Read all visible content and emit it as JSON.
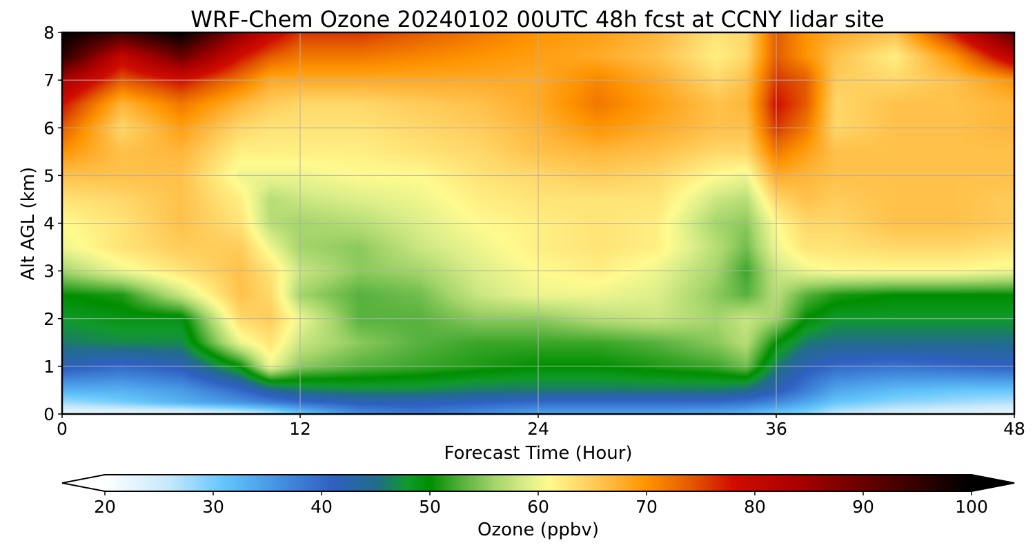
{
  "chart_data": {
    "type": "heatmap",
    "title": "WRF-Chem Ozone  20240102 00UTC 48h fcst at CCNY lidar site",
    "xlabel": "Forecast Time (Hour)",
    "ylabel": "Alt AGL (km)",
    "xlim": [
      0,
      48
    ],
    "ylim": [
      0,
      8
    ],
    "xticks": [
      0,
      12,
      24,
      36,
      48
    ],
    "yticks": [
      0,
      1,
      2,
      3,
      4,
      5,
      6,
      7,
      8
    ],
    "grid": true,
    "z_units": "ppbv",
    "x": [
      0,
      3,
      6,
      9,
      10.5,
      12,
      15,
      18,
      21,
      24,
      27,
      30,
      33,
      34.5,
      36,
      37.5,
      39,
      42,
      45,
      48
    ],
    "y": [
      0,
      0.25,
      0.5,
      1,
      1.5,
      2,
      2.5,
      3,
      3.5,
      4,
      4.5,
      5,
      5.5,
      6,
      6.5,
      7,
      7.5,
      8
    ],
    "z": [
      [
        22,
        22,
        22,
        24,
        26,
        30,
        36,
        38,
        36,
        34,
        34,
        34,
        33,
        32,
        30,
        29,
        26,
        24,
        23,
        22
      ],
      [
        28,
        30,
        33,
        36,
        38,
        40,
        42,
        42,
        41,
        40,
        40,
        40,
        40,
        39,
        37,
        34,
        31,
        29,
        28,
        27
      ],
      [
        33,
        33,
        35,
        40,
        44,
        46,
        47,
        47,
        46,
        46,
        46,
        46,
        46,
        45,
        42,
        38,
        34,
        32,
        31,
        31
      ],
      [
        42,
        40,
        42,
        50,
        60,
        55,
        53,
        52,
        51,
        50,
        50,
        51,
        52,
        54,
        46,
        42,
        40,
        39,
        40,
        41
      ],
      [
        46,
        47,
        47,
        60,
        63,
        58,
        55,
        53,
        52,
        52,
        52,
        53,
        55,
        57,
        50,
        46,
        45,
        45,
        45,
        45
      ],
      [
        48,
        49,
        49,
        64,
        65,
        60,
        53,
        53,
        55,
        55,
        57,
        58,
        56,
        58,
        56,
        50,
        48,
        48,
        48,
        48
      ],
      [
        50,
        51,
        58,
        66,
        64,
        56,
        53,
        54,
        58,
        60,
        60,
        59,
        55,
        53,
        57,
        53,
        51,
        50,
        50,
        50
      ],
      [
        56,
        60,
        63,
        66,
        63,
        58,
        55,
        56,
        59,
        61,
        62,
        60,
        56,
        52,
        58,
        60,
        61,
        61,
        61,
        60
      ],
      [
        60,
        63,
        65,
        65,
        60,
        56,
        55,
        58,
        60,
        62,
        63,
        62,
        57,
        54,
        60,
        63,
        63,
        64,
        64,
        63
      ],
      [
        61,
        63,
        66,
        63,
        57,
        56,
        57,
        59,
        61,
        62,
        63,
        62,
        56,
        55,
        61,
        64,
        64,
        66,
        66,
        65
      ],
      [
        63,
        64,
        66,
        62,
        57,
        58,
        59,
        60,
        62,
        63,
        63,
        63,
        58,
        57,
        64,
        66,
        65,
        66,
        66,
        65
      ],
      [
        66,
        66,
        66,
        60,
        60,
        60,
        61,
        61,
        63,
        64,
        65,
        64,
        61,
        60,
        68,
        67,
        66,
        66,
        66,
        66
      ],
      [
        70,
        66,
        67,
        62,
        62,
        62,
        62,
        63,
        64,
        66,
        67,
        66,
        64,
        64,
        72,
        69,
        66,
        66,
        66,
        66
      ],
      [
        74,
        64,
        69,
        64,
        63,
        63,
        63,
        64,
        65,
        67,
        70,
        68,
        66,
        66,
        76,
        72,
        64,
        66,
        66,
        67
      ],
      [
        78,
        67,
        72,
        67,
        65,
        64,
        64,
        65,
        66,
        68,
        72,
        69,
        66,
        67,
        78,
        74,
        64,
        66,
        66,
        67
      ],
      [
        84,
        74,
        78,
        72,
        68,
        68,
        68,
        68,
        68,
        68,
        71,
        68,
        64,
        66,
        76,
        74,
        65,
        64,
        66,
        70
      ],
      [
        96,
        80,
        90,
        78,
        74,
        72,
        72,
        71,
        70,
        69,
        68,
        66,
        62,
        64,
        74,
        70,
        66,
        62,
        70,
        82
      ],
      [
        100,
        94,
        100,
        86,
        80,
        76,
        76,
        74,
        72,
        70,
        69,
        67,
        63,
        64,
        74,
        70,
        68,
        66,
        78,
        92
      ]
    ],
    "colorbar": {
      "label": "Ozone  (ppbv)",
      "min": 20,
      "max": 100,
      "ticks": [
        20,
        30,
        40,
        50,
        60,
        70,
        80,
        90,
        100
      ],
      "extend": "both",
      "orientation": "horizontal",
      "color_stops": [
        {
          "value": 20,
          "color": "#ffffff"
        },
        {
          "value": 26,
          "color": "#c6e8fb"
        },
        {
          "value": 31,
          "color": "#63c6fb"
        },
        {
          "value": 36,
          "color": "#4592e2"
        },
        {
          "value": 41,
          "color": "#2f60c2"
        },
        {
          "value": 45,
          "color": "#226c8c"
        },
        {
          "value": 48,
          "color": "#109a2a"
        },
        {
          "value": 50,
          "color": "#008e00"
        },
        {
          "value": 53,
          "color": "#58b23e"
        },
        {
          "value": 56,
          "color": "#a5d56c"
        },
        {
          "value": 59,
          "color": "#ddef8a"
        },
        {
          "value": 61,
          "color": "#fffb8f"
        },
        {
          "value": 64,
          "color": "#ffd86a"
        },
        {
          "value": 67,
          "color": "#ffb63a"
        },
        {
          "value": 70,
          "color": "#ff9400"
        },
        {
          "value": 74,
          "color": "#e45c00"
        },
        {
          "value": 78,
          "color": "#d00d00"
        },
        {
          "value": 84,
          "color": "#aa0000"
        },
        {
          "value": 90,
          "color": "#6a0000"
        },
        {
          "value": 96,
          "color": "#2a0000"
        },
        {
          "value": 100,
          "color": "#000000"
        }
      ]
    }
  }
}
